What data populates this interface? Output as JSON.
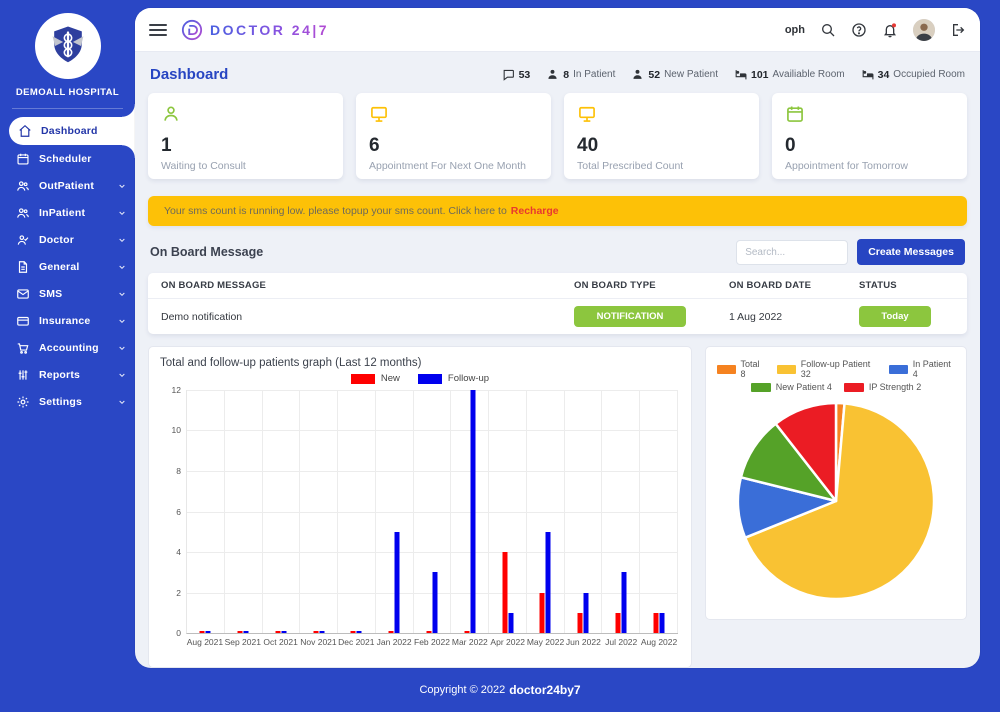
{
  "brand": {
    "name": "DOCTOR 24|7",
    "initial": "D"
  },
  "sidebar": {
    "hospital": "DEMOALL HOSPITAL",
    "items": [
      {
        "label": "Dashboard",
        "active": true,
        "submenu": false
      },
      {
        "label": "Scheduler",
        "active": false,
        "submenu": false
      },
      {
        "label": "OutPatient",
        "active": false,
        "submenu": true
      },
      {
        "label": "InPatient",
        "active": false,
        "submenu": true
      },
      {
        "label": "Doctor",
        "active": false,
        "submenu": true
      },
      {
        "label": "General",
        "active": false,
        "submenu": true
      },
      {
        "label": "SMS",
        "active": false,
        "submenu": true
      },
      {
        "label": "Insurance",
        "active": false,
        "submenu": true
      },
      {
        "label": "Accounting",
        "active": false,
        "submenu": true
      },
      {
        "label": "Reports",
        "active": false,
        "submenu": true
      },
      {
        "label": "Settings",
        "active": false,
        "submenu": true
      }
    ]
  },
  "header": {
    "username": "oph"
  },
  "page_title": "Dashboard",
  "topstats": [
    {
      "value": "53",
      "label": ""
    },
    {
      "value": "8",
      "label": "In Patient"
    },
    {
      "value": "52",
      "label": "New Patient"
    },
    {
      "value": "101",
      "label": "Availiable Room"
    },
    {
      "value": "34",
      "label": "Occupied Room"
    }
  ],
  "stat_cards": [
    {
      "value": "1",
      "label": "Waiting to Consult"
    },
    {
      "value": "6",
      "label": "Appointment For Next One Month"
    },
    {
      "value": "40",
      "label": "Total Prescribed Count"
    },
    {
      "value": "0",
      "label": "Appointment for Tomorrow"
    }
  ],
  "sms_alert": {
    "text": "Your sms count is running low. please topup your sms count. Click here to",
    "link_text": "Recharge"
  },
  "onboard": {
    "title": "On Board Message",
    "search_placeholder": "Search...",
    "create_button": "Create Messages",
    "columns": [
      "ON BOARD MESSAGE",
      "ON BOARD TYPE",
      "ON BOARD DATE",
      "STATUS"
    ],
    "rows": [
      {
        "message": "Demo notification",
        "type": "NOTIFICATION",
        "date": "1 Aug 2022",
        "status": "Today"
      }
    ]
  },
  "chart_data": [
    {
      "type": "bar",
      "title": "Total and follow-up patients graph (Last 12 months)",
      "categories": [
        "Aug 2021",
        "Sep 2021",
        "Oct 2021",
        "Nov 2021",
        "Dec 2021",
        "Jan 2022",
        "Feb 2022",
        "Mar 2022",
        "Apr 2022",
        "May 2022",
        "Jun 2022",
        "Jul 2022",
        "Aug 2022"
      ],
      "series": [
        {
          "name": "New",
          "color": "#ff0000",
          "values": [
            0,
            0,
            0,
            0,
            0,
            0,
            0,
            0,
            4,
            2,
            1,
            1,
            1
          ]
        },
        {
          "name": "Follow-up",
          "color": "#0000ee",
          "values": [
            0,
            0,
            0,
            0,
            0,
            5,
            3,
            12,
            1,
            5,
            2,
            3,
            1
          ]
        }
      ],
      "ylim": [
        0,
        12
      ],
      "yticks": [
        0,
        2,
        4,
        6,
        8,
        10,
        12
      ],
      "grid": true,
      "legend_position": "top"
    },
    {
      "type": "pie",
      "slices": [
        {
          "label": "Total 8",
          "value": 8,
          "color": "#f58220",
          "start": 0,
          "end": 5
        },
        {
          "label": "Follow-up Patient 32",
          "value": 32,
          "color": "#f9c233",
          "start": 5,
          "end": 248
        },
        {
          "label": "In Patient 4",
          "value": 4,
          "color": "#3a6ed8",
          "start": 248,
          "end": 284
        },
        {
          "label": "New Patient 4",
          "value": 4,
          "color": "#55a228",
          "start": 284,
          "end": 322
        },
        {
          "label": "IP Strength 2",
          "value": 2,
          "color": "#eb1c24",
          "start": 322,
          "end": 360
        }
      ],
      "legend_rows": [
        3,
        2
      ],
      "legend_position": "top"
    }
  ],
  "footer": {
    "copyright": "Copyright © 2022",
    "brand": "doctor24by7"
  },
  "colors": {
    "primary": "#2a47c5",
    "warning": "#fdc107",
    "success": "#8cc63e"
  }
}
